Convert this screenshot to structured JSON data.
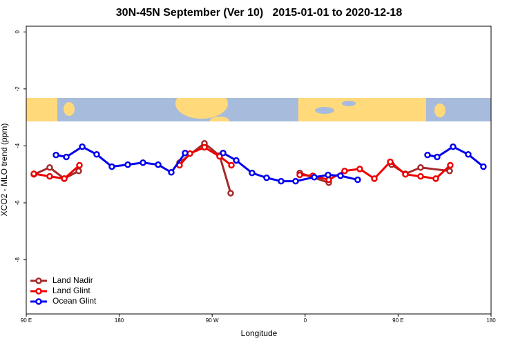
{
  "chart_data": {
    "type": "line",
    "title": "30N-45N September (Ver 10)   2015-01-01 to 2020-12-18",
    "xlabel": "Longitude",
    "ylabel": "XCO2 - MLO trend (ppm)",
    "xlim": [
      90,
      540
    ],
    "ylim": [
      -9.9,
      0.2
    ],
    "xticks": [
      {
        "value": 90,
        "label": "90 E"
      },
      180,
      {
        "value": 270,
        "label": "90 W"
      },
      {
        "value": 360,
        "label": "0"
      },
      {
        "value": 450,
        "label": "90 E"
      },
      {
        "value": 540,
        "label": "180"
      }
    ],
    "yticks": [
      0,
      -2,
      -4,
      -6,
      -8
    ],
    "legend": "bottom-left",
    "series": [
      {
        "name": "Land Nadir",
        "color": "#a52a2a",
        "x": [
          97.4,
          112.7,
          126.8,
          140.8,
          null,
          238.4,
          262.5,
          277.2,
          287.9,
          null,
          354.8,
          382.9,
          null,
          443.7,
          457.1,
          471.8,
          499.9
        ],
        "values": [
          -5.0,
          -4.76,
          -5.15,
          -4.88,
          null,
          -4.59,
          -3.91,
          -4.34,
          -5.66,
          null,
          -4.95,
          -5.29,
          null,
          -4.66,
          -4.98,
          -4.76,
          -4.88
        ]
      },
      {
        "name": "Land Glint",
        "color": "#ee0000",
        "x": [
          97.4,
          112.7,
          126.8,
          141.5,
          null,
          238.4,
          248.5,
          262.5,
          277.2,
          288.6,
          null,
          354.8,
          367.5,
          382.9,
          398.2,
          412.9,
          427.0,
          442.4,
          457.1,
          471.8,
          486.5,
          500.5
        ],
        "values": [
          -4.98,
          -5.07,
          -5.15,
          -4.68,
          null,
          -4.68,
          -4.27,
          -4.05,
          -4.37,
          -4.68,
          null,
          -5.02,
          -5.05,
          -5.19,
          -4.88,
          -4.81,
          -5.15,
          -4.56,
          -5.0,
          -5.07,
          -5.15,
          -4.68
        ]
      },
      {
        "name": "Ocean Glint",
        "color": "#0000ee",
        "x": [
          118.8,
          128.8,
          144.2,
          158.2,
          172.9,
          188.3,
          203.0,
          217.7,
          230.4,
          243.8,
          null,
          280.6,
          293.3,
          308.6,
          322.7,
          336.7,
          350.8,
          368.8,
          382.2,
          394.2,
          410.9,
          null,
          478.5,
          487.8,
          503.2,
          517.9,
          532.6
        ],
        "values": [
          -4.32,
          -4.39,
          -4.03,
          -4.3,
          -4.73,
          -4.66,
          -4.59,
          -4.66,
          -4.93,
          -4.25,
          null,
          -4.25,
          -4.51,
          -4.95,
          -5.12,
          -5.24,
          -5.24,
          -5.1,
          -5.02,
          -5.05,
          -5.19,
          null,
          -4.32,
          -4.39,
          -4.03,
          -4.3,
          -4.73
        ]
      }
    ]
  }
}
